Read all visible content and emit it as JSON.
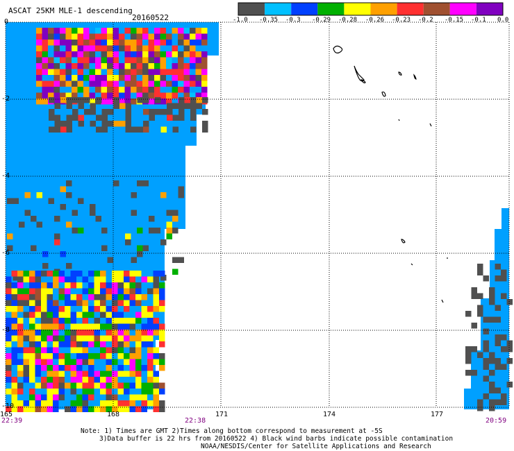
{
  "header": {
    "title": "ASCAT 25KM MLE-1 descending",
    "date": "20160522"
  },
  "legend": {
    "colors": [
      "#505050",
      "#00c0ff",
      "#0040ff",
      "#00b000",
      "#ffff00",
      "#ffa000",
      "#ff3030",
      "#a05030",
      "#ff00ff",
      "#8000c0"
    ],
    "labels": [
      "-1.0",
      "-0.35",
      "-0.3",
      "-0.29",
      "-0.28",
      "-0.26",
      "-0.23",
      "-0.2",
      "-0.15",
      "-0.1",
      "0.0"
    ]
  },
  "axes": {
    "x_ticks": [
      "165",
      "168",
      "171",
      "174",
      "177"
    ],
    "y_ticks": [
      "0",
      "-2",
      "-4",
      "-6",
      "-8",
      "-10"
    ]
  },
  "times": {
    "left": "22:39",
    "middle": "22:38",
    "right": "20:59"
  },
  "notes": {
    "line1": "Note: 1) Times are GMT 2)Times along bottom correspond to measurement at -5S",
    "line2": "3)Data buffer is 22 hrs from 20160522 4) Black wind barbs indicate possible contamination",
    "line3": "NOAA/NESDIS/Center for Satellite Applications and Research"
  },
  "colors": {
    "background": "#00a0ff",
    "grid": "#000000"
  }
}
